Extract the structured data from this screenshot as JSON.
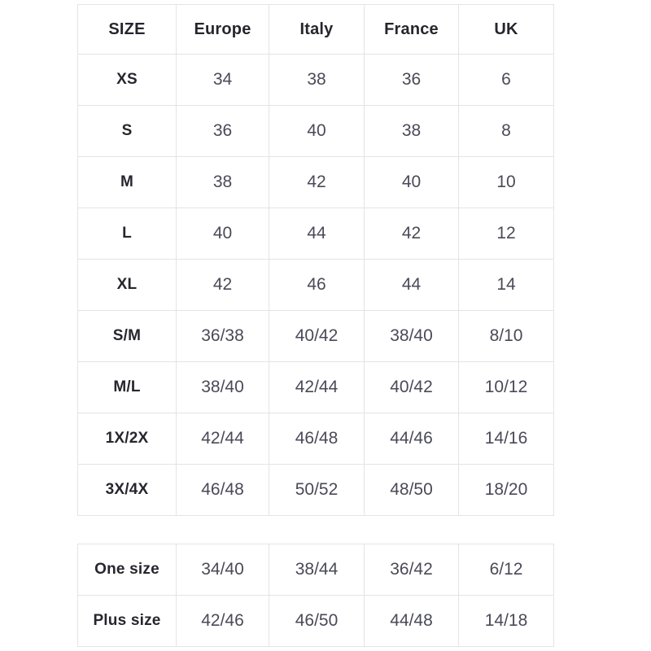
{
  "main_table": {
    "columns": [
      "SIZE",
      "Europe",
      "Italy",
      "France",
      "UK"
    ],
    "rows": [
      {
        "label": "XS",
        "values": [
          "34",
          "38",
          "36",
          "6"
        ]
      },
      {
        "label": "S",
        "values": [
          "36",
          "40",
          "38",
          "8"
        ]
      },
      {
        "label": "M",
        "values": [
          "38",
          "42",
          "40",
          "10"
        ]
      },
      {
        "label": "L",
        "values": [
          "40",
          "44",
          "42",
          "12"
        ]
      },
      {
        "label": "XL",
        "values": [
          "42",
          "46",
          "44",
          "14"
        ]
      },
      {
        "label": "S/M",
        "values": [
          "36/38",
          "40/42",
          "38/40",
          "8/10"
        ]
      },
      {
        "label": "M/L",
        "values": [
          "38/40",
          "42/44",
          "40/42",
          "10/12"
        ]
      },
      {
        "label": "1X/2X",
        "values": [
          "42/44",
          "46/48",
          "44/46",
          "14/16"
        ]
      },
      {
        "label": "3X/4X",
        "values": [
          "46/48",
          "50/52",
          "48/50",
          "18/20"
        ]
      }
    ]
  },
  "secondary_table": {
    "rows": [
      {
        "label": "One size",
        "values": [
          "34/40",
          "38/44",
          "36/42",
          "6/12"
        ]
      },
      {
        "label": "Plus size",
        "values": [
          "42/46",
          "46/50",
          "44/48",
          "14/18"
        ]
      }
    ]
  },
  "colors": {
    "border": "#e4e4e4",
    "label_text": "#26262e",
    "value_text": "#4a4a58",
    "background": "#ffffff"
  }
}
